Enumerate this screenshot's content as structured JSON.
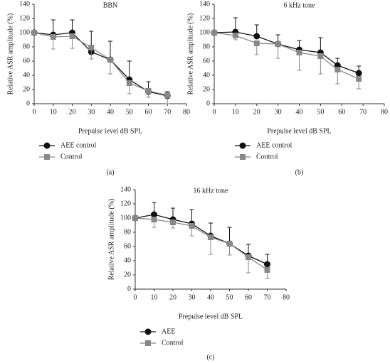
{
  "chart_data": [
    {
      "type": "line",
      "title": "BBN",
      "panel_label": "(a)",
      "x_label": "Prepulse level dB SPL",
      "y_label": "Relative ASR amplitude (%)",
      "xlim": [
        0,
        80
      ],
      "xticks": [
        0,
        10,
        20,
        30,
        40,
        50,
        60,
        70,
        80
      ],
      "ylim": [
        0,
        140
      ],
      "yticks": [
        0,
        20,
        40,
        60,
        80,
        100,
        120,
        140
      ],
      "series": [
        {
          "name": "AEE control",
          "color": "#111111",
          "marker": "circle",
          "error_direction": "up",
          "x": [
            0,
            10,
            20,
            30,
            40,
            50,
            60,
            70
          ],
          "values": [
            100,
            97,
            100,
            73,
            62,
            34,
            17,
            11
          ],
          "errors": [
            0,
            21,
            18,
            29,
            26,
            26,
            14,
            6
          ]
        },
        {
          "name": "Control",
          "color": "#888888",
          "marker": "square",
          "error_direction": "down",
          "x": [
            0,
            10,
            20,
            30,
            40,
            50,
            60,
            70
          ],
          "values": [
            100,
            94,
            95,
            79,
            62,
            29,
            18,
            12
          ],
          "errors": [
            0,
            17,
            17,
            16,
            20,
            15,
            9,
            12
          ]
        }
      ]
    },
    {
      "type": "line",
      "title": "6 kHz tone",
      "panel_label": "(b)",
      "x_label": "Prepulse level dB SPL",
      "y_label": "Relative ASR amplitude (%)",
      "xlim": [
        0,
        80
      ],
      "xticks": [
        0,
        10,
        20,
        30,
        40,
        50,
        60,
        70,
        80
      ],
      "ylim": [
        0,
        140
      ],
      "yticks": [
        0,
        20,
        40,
        60,
        80,
        100,
        120,
        140
      ],
      "series": [
        {
          "name": "AEE control",
          "color": "#111111",
          "marker": "circle",
          "error_direction": "up",
          "x": [
            0,
            10,
            20,
            30,
            40,
            50,
            58,
            68
          ],
          "values": [
            100,
            101,
            95,
            84,
            76,
            72,
            54,
            43
          ],
          "errors": [
            0,
            20,
            16,
            13,
            13,
            21,
            10,
            10
          ]
        },
        {
          "name": "Control",
          "color": "#888888",
          "marker": "square",
          "error_direction": "down",
          "x": [
            0,
            10,
            20,
            30,
            40,
            50,
            58,
            68
          ],
          "values": [
            100,
            96,
            85,
            84,
            72,
            67,
            48,
            35
          ],
          "errors": [
            0,
            6,
            16,
            20,
            25,
            25,
            20,
            14
          ]
        }
      ]
    },
    {
      "type": "line",
      "title": "16 kHz tone",
      "panel_label": "(c)",
      "x_label": "Prepulse level dB SPL",
      "y_label": "Relative ASR amplitude (%)",
      "xlim": [
        0,
        80
      ],
      "xticks": [
        0,
        10,
        20,
        30,
        40,
        50,
        60,
        70,
        80
      ],
      "ylim": [
        0,
        140
      ],
      "yticks": [
        0,
        20,
        40,
        60,
        80,
        100,
        120,
        140
      ],
      "series": [
        {
          "name": "AEE",
          "color": "#111111",
          "marker": "circle",
          "error_direction": "up",
          "x": [
            0,
            10,
            20,
            30,
            40,
            50,
            60,
            70
          ],
          "values": [
            100,
            105,
            98,
            92,
            75,
            64,
            47,
            35
          ],
          "errors": [
            0,
            17,
            16,
            20,
            18,
            23,
            16,
            14
          ]
        },
        {
          "name": "Control",
          "color": "#888888",
          "marker": "square",
          "error_direction": "down",
          "x": [
            0,
            10,
            20,
            30,
            40,
            50,
            60,
            70
          ],
          "values": [
            100,
            98,
            94,
            89,
            73,
            64,
            45,
            27
          ],
          "errors": [
            0,
            11,
            8,
            14,
            24,
            16,
            22,
            12
          ]
        }
      ]
    }
  ]
}
